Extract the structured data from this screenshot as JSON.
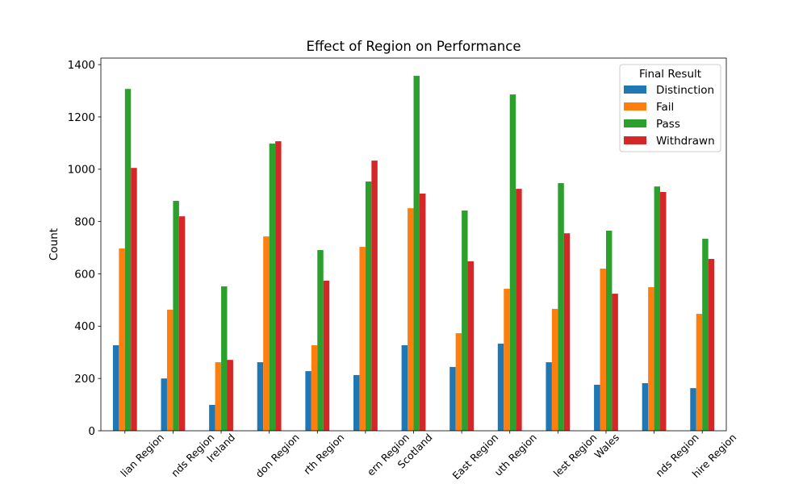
{
  "chart_data": {
    "type": "bar",
    "title": "Effect of Region on Performance",
    "ylabel": "Count",
    "categories": [
      "lian Region",
      "nds Region",
      "Ireland",
      "don Region",
      "rth Region",
      "ern Region",
      "Scotland",
      "East Region",
      "uth Region",
      "lest Region",
      "Wales",
      "nds Region",
      "hire Region"
    ],
    "series": [
      {
        "name": "Distinction",
        "color": "#1f77b4",
        "values": [
          327,
          200,
          99,
          262,
          228,
          213,
          327,
          244,
          333,
          262,
          176,
          182,
          163
        ]
      },
      {
        "name": "Fail",
        "color": "#ff7f0e",
        "values": [
          697,
          463,
          262,
          743,
          327,
          703,
          851,
          373,
          543,
          466,
          620,
          549,
          447
        ]
      },
      {
        "name": "Pass",
        "color": "#2ca02c",
        "values": [
          1307,
          879,
          552,
          1098,
          691,
          953,
          1357,
          842,
          1286,
          947,
          765,
          934,
          734
        ]
      },
      {
        "name": "Withdrawn",
        "color": "#d62728",
        "values": [
          1005,
          820,
          271,
          1107,
          574,
          1033,
          907,
          648,
          925,
          755,
          524,
          913,
          657
        ]
      }
    ],
    "ylim": [
      0,
      1425
    ],
    "yticks": [
      0,
      200,
      400,
      600,
      800,
      1000,
      1200,
      1400
    ],
    "grid": false,
    "legend": {
      "title": "Final Result",
      "placement": "top-right"
    }
  }
}
